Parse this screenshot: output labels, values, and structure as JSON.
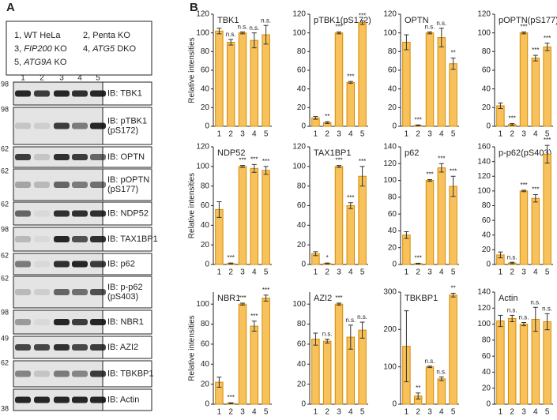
{
  "panel_labels": {
    "a": "A",
    "b": "B"
  },
  "blot": {
    "legend": [
      [
        "1, WT HeLa"
      ],
      [
        "2, Penta KO"
      ],
      [
        "3, ",
        "FIP200",
        " KO"
      ],
      [
        "4, ",
        "ATG5",
        " DKO"
      ],
      [
        "5, ",
        "ATG9A",
        " KO"
      ]
    ],
    "lanes": [
      "1",
      "2",
      "3",
      "4",
      "5"
    ],
    "rows": [
      {
        "label": [
          "IB: TBK1"
        ],
        "marker": 98
      },
      {
        "label": [
          "IB: pTBK1",
          "(pS172)"
        ],
        "marker": 98
      },
      {
        "label": [
          "IB: OPTN"
        ],
        "marker": 62
      },
      {
        "label": [
          "IB: pOPTN",
          "(pS177)"
        ],
        "marker": 62
      },
      {
        "label": [
          "IB: NDP52"
        ],
        "marker": 62
      },
      {
        "label": [
          "IB: TAX1BP1"
        ],
        "marker": 98
      },
      {
        "label": [
          "IB: p62"
        ],
        "marker": 62
      },
      {
        "label": [
          "IB: p-p62",
          "(pS403)"
        ],
        "marker": 62
      },
      {
        "label": [
          "IB: NBR1"
        ],
        "marker": 98
      },
      {
        "label": [
          "IB: AZI2"
        ],
        "marker": 49
      },
      {
        "label": [
          "IB: TBKBP1"
        ],
        "marker": 62
      },
      {
        "label": [
          "IB: Actin"
        ],
        "marker": 38
      }
    ]
  },
  "chart_data": [
    {
      "type": "bar",
      "title": "TBK1",
      "y_label": "Relative intensities",
      "categories": [
        "1",
        "2",
        "3",
        "4",
        "5"
      ],
      "values": [
        102,
        90,
        100,
        92,
        98
      ],
      "errors": [
        3,
        3,
        1,
        8,
        10
      ],
      "significance": [
        null,
        "n.s.",
        "n.s.",
        "n.s.",
        "n.s."
      ],
      "color": "#f7c15c",
      "ylim": [
        0,
        120
      ],
      "yticks": [
        0,
        20,
        40,
        60,
        80,
        100,
        120
      ]
    },
    {
      "type": "bar",
      "title": "pTBK1(pS172)",
      "categories": [
        "1",
        "2",
        "3",
        "4",
        "5"
      ],
      "values": [
        9,
        4,
        100,
        47,
        111
      ],
      "errors": [
        1.5,
        1,
        1,
        1,
        2
      ],
      "significance": [
        null,
        "**",
        "***",
        "***",
        "***"
      ],
      "color": "#f7c15c",
      "ylim": [
        0,
        120
      ],
      "yticks": [
        0,
        20,
        40,
        60,
        80,
        100,
        120
      ]
    },
    {
      "type": "bar",
      "title": "OPTN",
      "categories": [
        "1",
        "2",
        "3",
        "4",
        "5"
      ],
      "values": [
        90,
        1,
        100,
        95,
        67
      ],
      "errors": [
        8,
        0.5,
        1,
        10,
        6
      ],
      "significance": [
        null,
        "***",
        "n.s.",
        "n.s.",
        "**"
      ],
      "color": "#f7c15c",
      "ylim": [
        0,
        120
      ],
      "yticks": [
        0,
        20,
        40,
        60,
        80,
        100,
        120
      ]
    },
    {
      "type": "bar",
      "title": "pOPTN(pS177)",
      "categories": [
        "1",
        "2",
        "3",
        "4",
        "5"
      ],
      "values": [
        22,
        2,
        100,
        73,
        85
      ],
      "errors": [
        3,
        1,
        1,
        3,
        4
      ],
      "significance": [
        null,
        "***",
        "***",
        "***",
        "***"
      ],
      "color": "#f7c15c",
      "ylim": [
        0,
        120
      ],
      "yticks": [
        0,
        20,
        40,
        60,
        80,
        100,
        120
      ]
    },
    {
      "type": "bar",
      "title": "NDP52",
      "y_label": "Relative intensities",
      "categories": [
        "1",
        "2",
        "3",
        "4",
        "5"
      ],
      "values": [
        56,
        1,
        100,
        98,
        96
      ],
      "errors": [
        8,
        0.5,
        1,
        4,
        4
      ],
      "significance": [
        null,
        "***",
        "***",
        "***",
        "***"
      ],
      "color": "#f7c15c",
      "ylim": [
        0,
        120
      ],
      "yticks": [
        0,
        20,
        40,
        60,
        80,
        100,
        120
      ]
    },
    {
      "type": "bar",
      "title": "TAX1BP1",
      "categories": [
        "1",
        "2",
        "3",
        "4",
        "5"
      ],
      "values": [
        11,
        1,
        100,
        60,
        90
      ],
      "errors": [
        2,
        0.5,
        1,
        3,
        10
      ],
      "significance": [
        null,
        "*",
        "***",
        "***",
        "***"
      ],
      "color": "#f7c15c",
      "ylim": [
        0,
        120
      ],
      "yticks": [
        0,
        20,
        40,
        60,
        80,
        100,
        120
      ]
    },
    {
      "type": "bar",
      "title": "p62",
      "categories": [
        "1",
        "2",
        "3",
        "4",
        "5"
      ],
      "values": [
        35,
        1,
        100,
        115,
        93
      ],
      "errors": [
        4,
        0.5,
        1,
        5,
        12
      ],
      "significance": [
        null,
        "***",
        "***",
        "***",
        "***"
      ],
      "color": "#f7c15c",
      "ylim": [
        0,
        140
      ],
      "yticks": [
        0,
        20,
        40,
        60,
        80,
        100,
        120,
        140
      ]
    },
    {
      "type": "bar",
      "title": "p-p62(pS403)",
      "categories": [
        "1",
        "2",
        "3",
        "4",
        "5"
      ],
      "values": [
        13,
        2,
        100,
        90,
        150
      ],
      "errors": [
        4,
        1,
        1,
        5,
        12
      ],
      "significance": [
        null,
        "n.s.",
        "***",
        "***",
        "***"
      ],
      "color": "#f7c15c",
      "ylim": [
        0,
        160
      ],
      "yticks": [
        0,
        20,
        40,
        60,
        80,
        100,
        120,
        140,
        160
      ]
    },
    {
      "type": "bar",
      "title": "NBR1",
      "y_label": "Relative intensities",
      "categories": [
        "1",
        "2",
        "3",
        "4",
        "5"
      ],
      "values": [
        22,
        1,
        100,
        78,
        106
      ],
      "errors": [
        5,
        0.5,
        1,
        5,
        3
      ],
      "significance": [
        null,
        "***",
        "***",
        "***",
        "***"
      ],
      "color": "#f7c15c",
      "ylim": [
        0,
        112
      ],
      "yticks": [
        0,
        20,
        40,
        60,
        80,
        100
      ]
    },
    {
      "type": "bar",
      "title": "AZI2",
      "categories": [
        "1",
        "2",
        "3",
        "4",
        "5"
      ],
      "values": [
        65,
        63,
        100,
        67,
        74
      ],
      "errors": [
        6,
        2,
        1,
        12,
        8
      ],
      "significance": [
        null,
        "n.s.",
        "***",
        "n.s.",
        "n.s."
      ],
      "color": "#f7c15c",
      "ylim": [
        0,
        112
      ],
      "yticks": [
        0,
        20,
        40,
        60,
        80,
        100
      ]
    },
    {
      "type": "bar",
      "title": "TBKBP1",
      "categories": [
        "1",
        "2",
        "3",
        "4",
        "5"
      ],
      "values": [
        155,
        22,
        100,
        68,
        292
      ],
      "errors": [
        95,
        8,
        2,
        5,
        5
      ],
      "significance": [
        null,
        "**",
        "n.s.",
        "n.s.",
        "**"
      ],
      "color": "#f7c15c",
      "ylim": [
        0,
        300
      ],
      "yticks": [
        0,
        100,
        200,
        300
      ]
    },
    {
      "type": "bar",
      "title": "Actin",
      "categories": [
        "1",
        "2",
        "3",
        "4",
        "5"
      ],
      "values": [
        104,
        107,
        100,
        106,
        103
      ],
      "errors": [
        7,
        4,
        2,
        15,
        10
      ],
      "significance": [
        null,
        "n.s.",
        "n.s.",
        "n.s.",
        "n.s."
      ],
      "color": "#f7c15c",
      "ylim": [
        0,
        140
      ],
      "yticks": [
        0,
        20,
        40,
        60,
        80,
        100,
        120,
        140
      ]
    }
  ]
}
